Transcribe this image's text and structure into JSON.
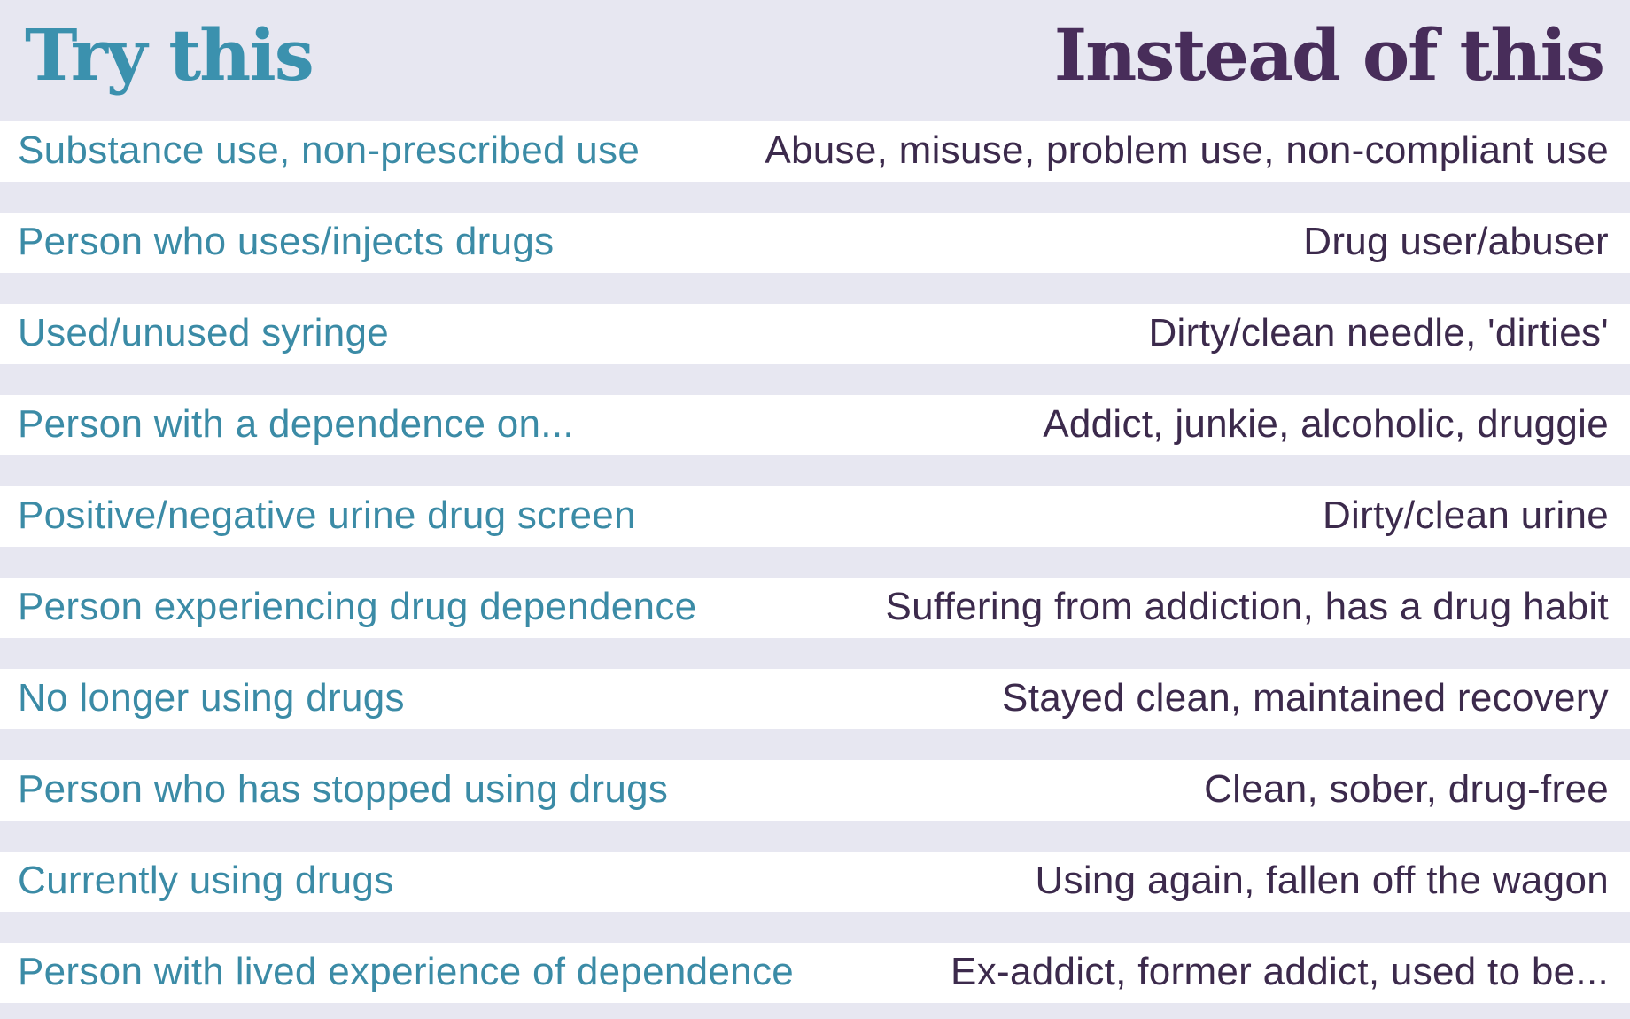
{
  "header": {
    "left_title": "Try this",
    "right_title": "Instead of this"
  },
  "colors": {
    "background": "#e7e7f1",
    "row_background": "#ffffff",
    "left_accent": "#3b91ae",
    "right_accent": "#482d5a"
  },
  "rows": [
    {
      "try": "Substance use, non-prescribed use",
      "instead": "Abuse, misuse, problem use, non-compliant use"
    },
    {
      "try": "Person who uses/injects drugs",
      "instead": "Drug user/abuser"
    },
    {
      "try": "Used/unused syringe",
      "instead": "Dirty/clean needle, 'dirties'"
    },
    {
      "try": "Person with a dependence on...",
      "instead": "Addict, junkie, alcoholic, druggie"
    },
    {
      "try": "Positive/negative urine drug screen",
      "instead": "Dirty/clean urine"
    },
    {
      "try": "Person experiencing drug dependence",
      "instead": "Suffering from addiction, has a drug habit"
    },
    {
      "try": "No longer using drugs",
      "instead": "Stayed clean, maintained recovery"
    },
    {
      "try": "Person who has stopped using drugs",
      "instead": "Clean, sober, drug-free"
    },
    {
      "try": "Currently using drugs",
      "instead": "Using again, fallen off the wagon"
    },
    {
      "try": "Person with lived experience of dependence",
      "instead": "Ex-addict, former addict, used to be..."
    }
  ]
}
